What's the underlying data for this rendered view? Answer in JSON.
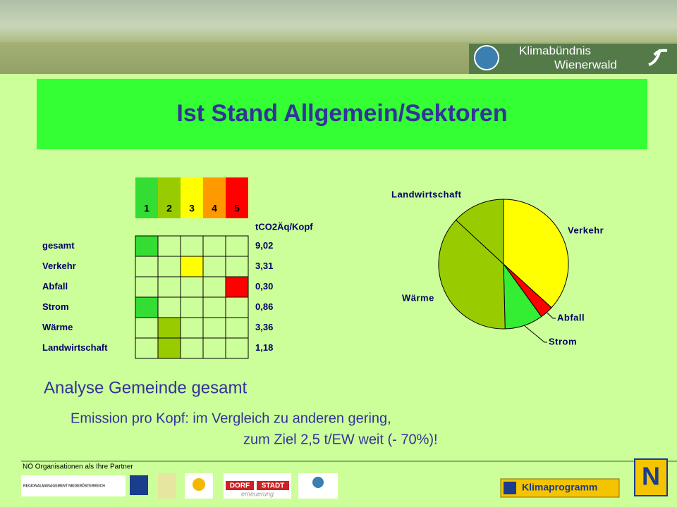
{
  "header": {
    "logo_line1": "Klimabündnis",
    "logo_line2": "Wienerwald"
  },
  "title": "Ist Stand Allgemein/Sektoren",
  "scale": [
    {
      "label": "1",
      "color": "#33dd33"
    },
    {
      "label": "2",
      "color": "#99cc00"
    },
    {
      "label": "3",
      "color": "#ffff00"
    },
    {
      "label": "4",
      "color": "#ff9900"
    },
    {
      "label": "5",
      "color": "#ff0000"
    }
  ],
  "table": {
    "unit": "tCO2Äq/Kopf",
    "rows": [
      {
        "label": "gesamt",
        "rating": 1,
        "value": "9,02"
      },
      {
        "label": "Verkehr",
        "rating": 3,
        "value": "3,31"
      },
      {
        "label": "Abfall",
        "rating": 5,
        "value": "0,30"
      },
      {
        "label": "Strom",
        "rating": 1,
        "value": "0,86"
      },
      {
        "label": "Wärme",
        "rating": 2,
        "value": "3,36"
      },
      {
        "label": "Landwirtschaft",
        "rating": 2,
        "value": "1,18"
      }
    ]
  },
  "chart_data": {
    "type": "pie",
    "categories": [
      "Verkehr",
      "Abfall",
      "Strom",
      "Wärme",
      "Landwirtschaft"
    ],
    "values": [
      3.31,
      0.3,
      0.86,
      3.36,
      1.18
    ],
    "colors": [
      "#ffff00",
      "#ff0000",
      "#33ee33",
      "#99cc00",
      "#99cc00"
    ]
  },
  "body": {
    "heading": "Analyse Gemeinde gesamt",
    "line1": "Emission pro Kopf: im Vergleich zu anderen gering,",
    "line2": "zum Ziel 2,5 t/EW weit (- 70%)!"
  },
  "footer": {
    "caption": "NÖ Organisationen als Ihre Partner",
    "logo_rm": "REGIONALMANAGEMENT NIEDERÖSTERREICH",
    "logo_dorf": "DORF",
    "logo_stadt": "STADT",
    "logo_erneuerung": "erneuerung",
    "logo_klimaprogramm": "Klimaprogramm",
    "logo_n": "N"
  }
}
